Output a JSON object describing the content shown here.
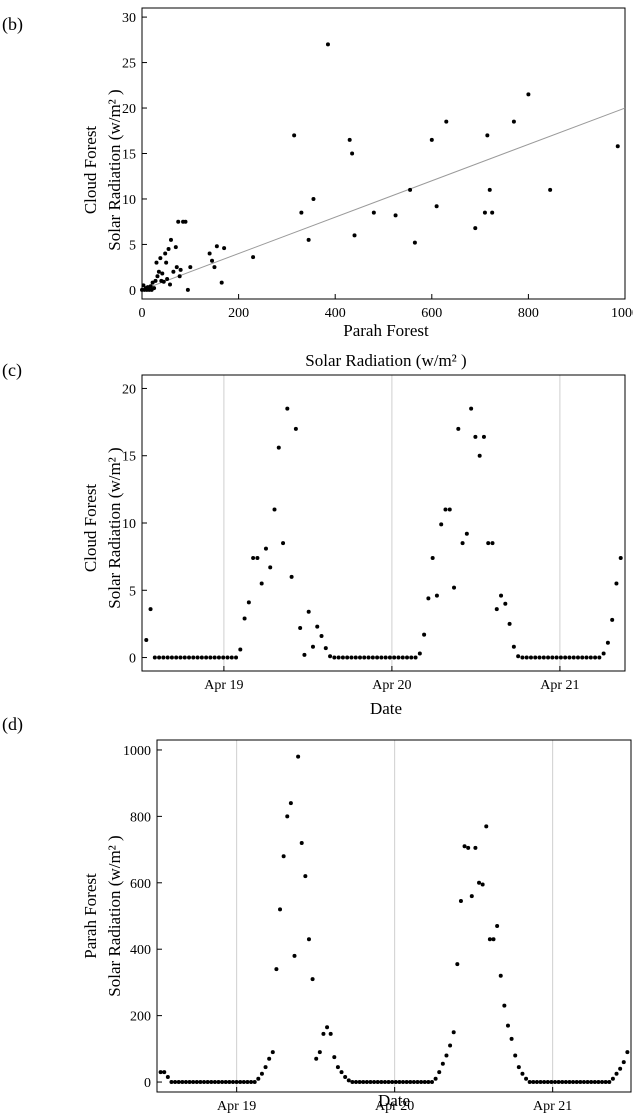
{
  "chart_data": [
    {
      "panel_label": "(b)",
      "type": "scatter",
      "title": "",
      "xlabel_lines": [
        "Parah Forest",
        "Solar Radiation (w/m² )"
      ],
      "ylabel_lines": [
        "Cloud Forest",
        "Solar Radiation (w/m² )"
      ],
      "xlim": [
        0,
        1000
      ],
      "ylim": [
        -1,
        31
      ],
      "x_ticks": [
        0,
        200,
        400,
        600,
        800,
        1000
      ],
      "y_ticks": [
        0,
        5,
        10,
        15,
        20,
        25,
        30
      ],
      "grid": false,
      "points": [
        [
          0,
          0
        ],
        [
          3,
          0.5
        ],
        [
          5,
          0
        ],
        [
          8,
          0.2
        ],
        [
          10,
          0
        ],
        [
          12,
          0.3
        ],
        [
          15,
          0
        ],
        [
          18,
          0.4
        ],
        [
          20,
          0
        ],
        [
          22,
          0.8
        ],
        [
          25,
          0.2
        ],
        [
          28,
          1
        ],
        [
          30,
          3
        ],
        [
          32,
          1.5
        ],
        [
          35,
          2
        ],
        [
          38,
          3.5
        ],
        [
          40,
          1
        ],
        [
          42,
          1.8
        ],
        [
          45,
          0.9
        ],
        [
          48,
          4
        ],
        [
          50,
          3
        ],
        [
          52,
          1.2
        ],
        [
          55,
          4.5
        ],
        [
          58,
          0.6
        ],
        [
          60,
          5.5
        ],
        [
          65,
          2
        ],
        [
          70,
          4.7
        ],
        [
          72,
          2.5
        ],
        [
          75,
          7.5
        ],
        [
          78,
          1.5
        ],
        [
          80,
          2.2
        ],
        [
          85,
          7.5
        ],
        [
          90,
          7.5
        ],
        [
          95,
          0
        ],
        [
          100,
          2.5
        ],
        [
          140,
          4
        ],
        [
          145,
          3.2
        ],
        [
          150,
          2.5
        ],
        [
          155,
          4.8
        ],
        [
          165,
          0.8
        ],
        [
          170,
          4.6
        ],
        [
          230,
          3.6
        ],
        [
          315,
          17
        ],
        [
          330,
          8.5
        ],
        [
          345,
          5.5
        ],
        [
          355,
          10
        ],
        [
          385,
          27
        ],
        [
          430,
          16.5
        ],
        [
          435,
          15
        ],
        [
          440,
          6
        ],
        [
          480,
          8.5
        ],
        [
          525,
          8.2
        ],
        [
          555,
          11
        ],
        [
          565,
          5.2
        ],
        [
          600,
          16.5
        ],
        [
          610,
          9.2
        ],
        [
          630,
          18.5
        ],
        [
          690,
          6.8
        ],
        [
          710,
          8.5
        ],
        [
          715,
          17
        ],
        [
          720,
          11
        ],
        [
          725,
          8.5
        ],
        [
          770,
          18.5
        ],
        [
          800,
          21.5
        ],
        [
          845,
          11
        ],
        [
          985,
          15.8
        ]
      ],
      "fit_line": {
        "x": [
          0,
          1000
        ],
        "y": [
          0,
          20
        ]
      }
    },
    {
      "panel_label": "(c)",
      "type": "scatter",
      "title": "",
      "xlabel": "Date",
      "ylabel_lines": [
        "Cloud Forest",
        "Solar Radiation (w/m² )"
      ],
      "xlim": [
        0,
        69
      ],
      "ylim": [
        -1,
        21
      ],
      "x_ticks": [
        {
          "x": 11.7,
          "label": "Apr 19"
        },
        {
          "x": 35.7,
          "label": "Apr 20"
        },
        {
          "x": 59.7,
          "label": "Apr 21"
        }
      ],
      "y_ticks": [
        0,
        5,
        10,
        15,
        20
      ],
      "grid": true,
      "values": [
        1.3,
        3.6,
        0,
        0,
        0,
        0,
        0,
        0,
        0,
        0,
        0,
        0,
        0,
        0,
        0,
        0,
        0,
        0,
        0,
        0,
        0,
        0,
        0.6,
        2.9,
        4.1,
        7.4,
        7.4,
        5.5,
        8.1,
        6.7,
        11,
        15.6,
        8.5,
        18.5,
        6,
        17,
        2.2,
        0.2,
        3.4,
        0.8,
        2.3,
        1.6,
        0.7,
        0.1,
        0,
        0,
        0,
        0,
        0,
        0,
        0,
        0,
        0,
        0,
        0,
        0,
        0,
        0,
        0,
        0,
        0,
        0,
        0,
        0,
        0.3,
        1.7,
        4.4,
        7.4,
        4.6,
        9.9,
        11,
        11,
        5.2,
        17,
        8.5,
        9.2,
        18.5,
        16.4,
        15,
        16.4,
        8.5,
        8.5,
        3.6,
        4.6,
        4,
        2.5,
        0.8,
        0.1,
        0,
        0,
        0,
        0,
        0,
        0,
        0,
        0,
        0,
        0,
        0,
        0,
        0,
        0,
        0,
        0,
        0,
        0,
        0,
        0.3,
        1.1,
        2.8,
        5.5,
        7.4
      ]
    },
    {
      "panel_label": "(d)",
      "type": "scatter",
      "title": "",
      "xlabel": "Date",
      "ylabel_lines": [
        "Parah Forest",
        "Solar Radiation (w/m² )"
      ],
      "xlim": [
        0,
        72
      ],
      "ylim": [
        -30,
        1030
      ],
      "x_ticks": [
        {
          "x": 12.1,
          "label": "Apr 19"
        },
        {
          "x": 36.1,
          "label": "Apr 20"
        },
        {
          "x": 60.1,
          "label": "Apr 21"
        }
      ],
      "y_ticks": [
        0,
        200,
        400,
        600,
        800,
        1000
      ],
      "grid": true,
      "values": [
        30,
        30,
        15,
        0,
        0,
        0,
        0,
        0,
        0,
        0,
        0,
        0,
        0,
        0,
        0,
        0,
        0,
        0,
        0,
        0,
        0,
        0,
        0,
        0,
        0,
        0,
        0,
        10,
        25,
        45,
        70,
        90,
        340,
        520,
        680,
        800,
        840,
        380,
        980,
        720,
        620,
        430,
        310,
        70,
        90,
        145,
        165,
        145,
        75,
        45,
        30,
        15,
        5,
        0,
        0,
        0,
        0,
        0,
        0,
        0,
        0,
        0,
        0,
        0,
        0,
        0,
        0,
        0,
        0,
        0,
        0,
        0,
        0,
        0,
        0,
        0,
        10,
        30,
        55,
        80,
        110,
        150,
        355,
        545,
        710,
        705,
        560,
        705,
        600,
        595,
        770,
        430,
        430,
        470,
        320,
        230,
        170,
        130,
        80,
        45,
        25,
        10,
        0,
        0,
        0,
        0,
        0,
        0,
        0,
        0,
        0,
        0,
        0,
        0,
        0,
        0,
        0,
        0,
        0,
        0,
        0,
        0,
        0,
        0,
        0,
        10,
        25,
        40,
        60,
        90
      ]
    }
  ]
}
